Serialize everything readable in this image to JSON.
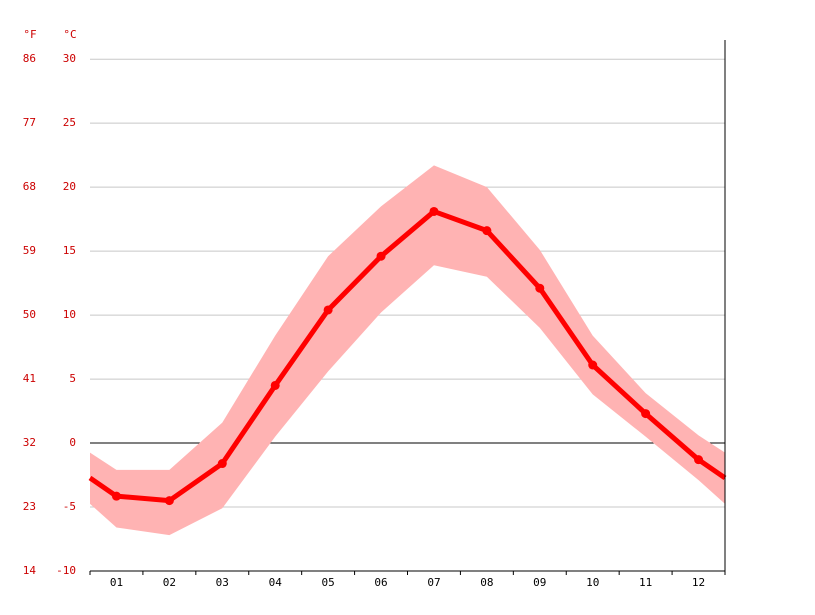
{
  "chart_data": {
    "type": "band-line",
    "y_unit_label": "°C",
    "y2_unit_label": "°F",
    "categories": [
      "01",
      "02",
      "03",
      "04",
      "05",
      "06",
      "07",
      "08",
      "09",
      "10",
      "11",
      "12"
    ],
    "values": [
      -4.15,
      -4.5,
      -1.6,
      4.5,
      10.4,
      14.6,
      18.1,
      16.6,
      12.1,
      6.1,
      2.3,
      -1.3
    ],
    "band_high": [
      -2.1,
      -2.1,
      1.6,
      8.4,
      14.6,
      18.5,
      21.7,
      20.0,
      15.1,
      8.4,
      3.9,
      0.6
    ],
    "band_low": [
      -6.6,
      -7.2,
      -5.1,
      0.5,
      5.6,
      10.2,
      13.9,
      13.0,
      9.0,
      3.8,
      0.5,
      -2.9
    ],
    "color": "#ff0000",
    "band_color": "#ffb3b3",
    "ylim": [
      -10,
      31.5
    ],
    "yticks": [
      30,
      25,
      20,
      15,
      10,
      5,
      0,
      -5,
      -10
    ],
    "y2ticks": [
      86,
      77,
      68,
      59,
      50,
      41,
      32,
      23,
      14
    ],
    "grid": true
  }
}
